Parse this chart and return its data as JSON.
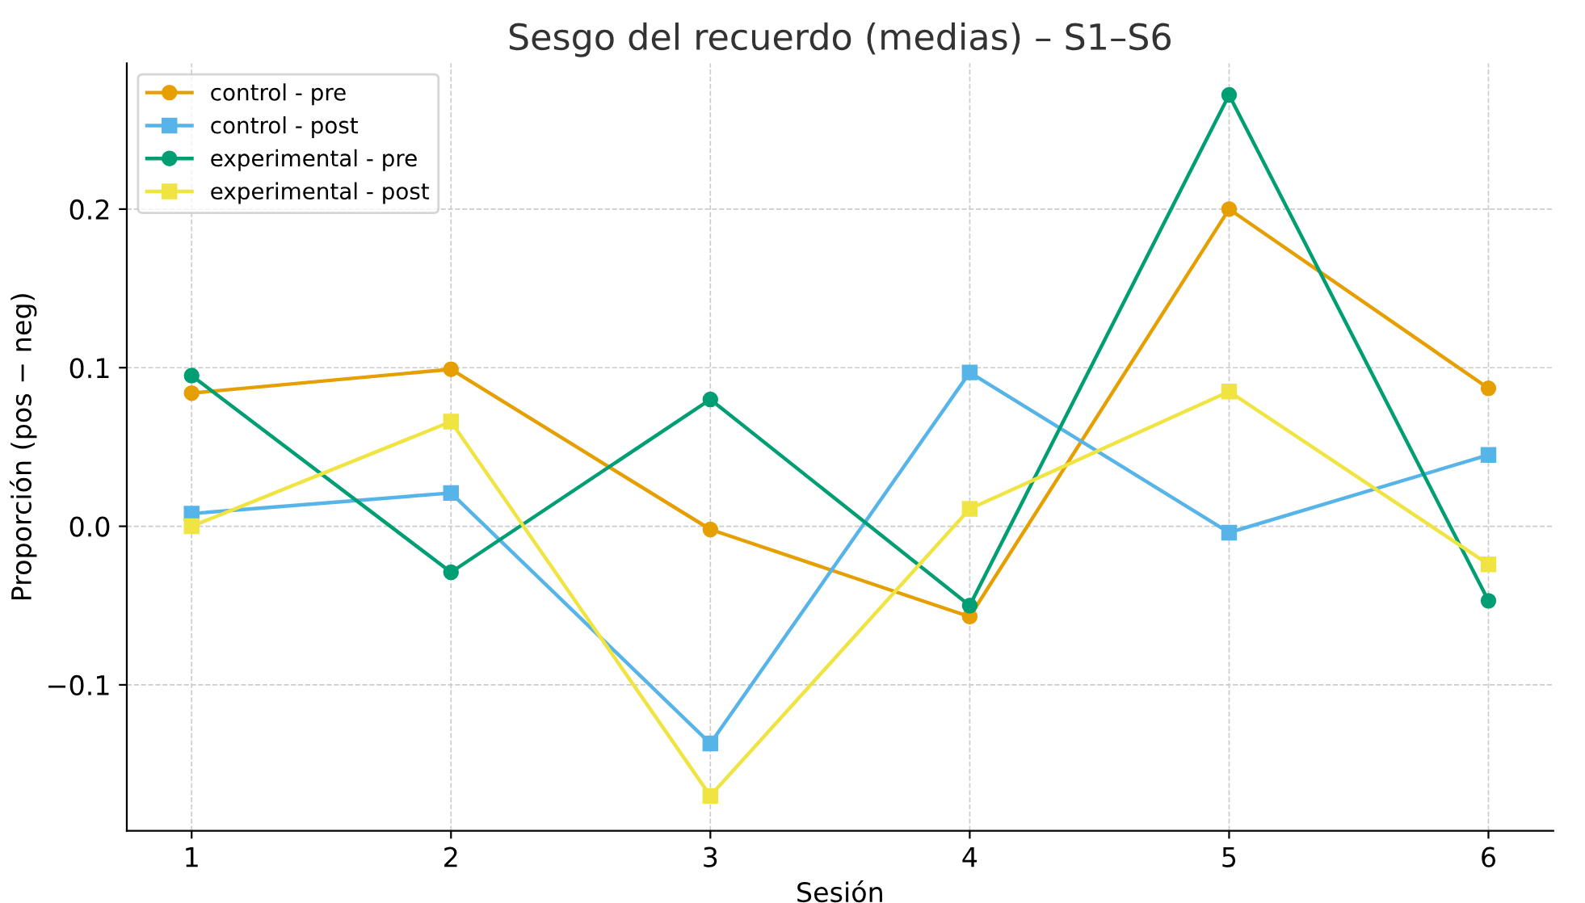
{
  "chart_data": {
    "type": "line",
    "title": "Sesgo del recuerdo (medias) – S1–S6",
    "xlabel": "Sesión",
    "ylabel": "Proporción (pos − neg)",
    "x": [
      1,
      2,
      3,
      4,
      5,
      6
    ],
    "series": [
      {
        "name": "control - pre",
        "color": "#e69f00",
        "marker": "circle",
        "values": [
          0.084,
          0.099,
          -0.002,
          -0.057,
          0.2,
          0.087
        ]
      },
      {
        "name": "control - post",
        "color": "#56b4e9",
        "marker": "square",
        "values": [
          0.008,
          0.021,
          -0.137,
          0.097,
          -0.004,
          0.045
        ]
      },
      {
        "name": "experimental - pre",
        "color": "#009e73",
        "marker": "circle",
        "values": [
          0.095,
          -0.029,
          0.08,
          -0.05,
          0.272,
          -0.047
        ]
      },
      {
        "name": "experimental - post",
        "color": "#f0e442",
        "marker": "square",
        "values": [
          0.0,
          0.066,
          -0.17,
          0.011,
          0.085,
          -0.024
        ]
      }
    ],
    "xlim": [
      0.75,
      6.25
    ],
    "xticks": [
      1,
      2,
      3,
      4,
      5,
      6
    ],
    "ylim": [
      -0.192,
      0.292
    ],
    "yticks": [
      {
        "value": -0.1,
        "label": "−0.1"
      },
      {
        "value": 0.0,
        "label": "0.0"
      },
      {
        "value": 0.1,
        "label": "0.1"
      },
      {
        "value": 0.2,
        "label": "0.2"
      }
    ],
    "grid": true,
    "legend": "top left",
    "line_style": "solid"
  }
}
